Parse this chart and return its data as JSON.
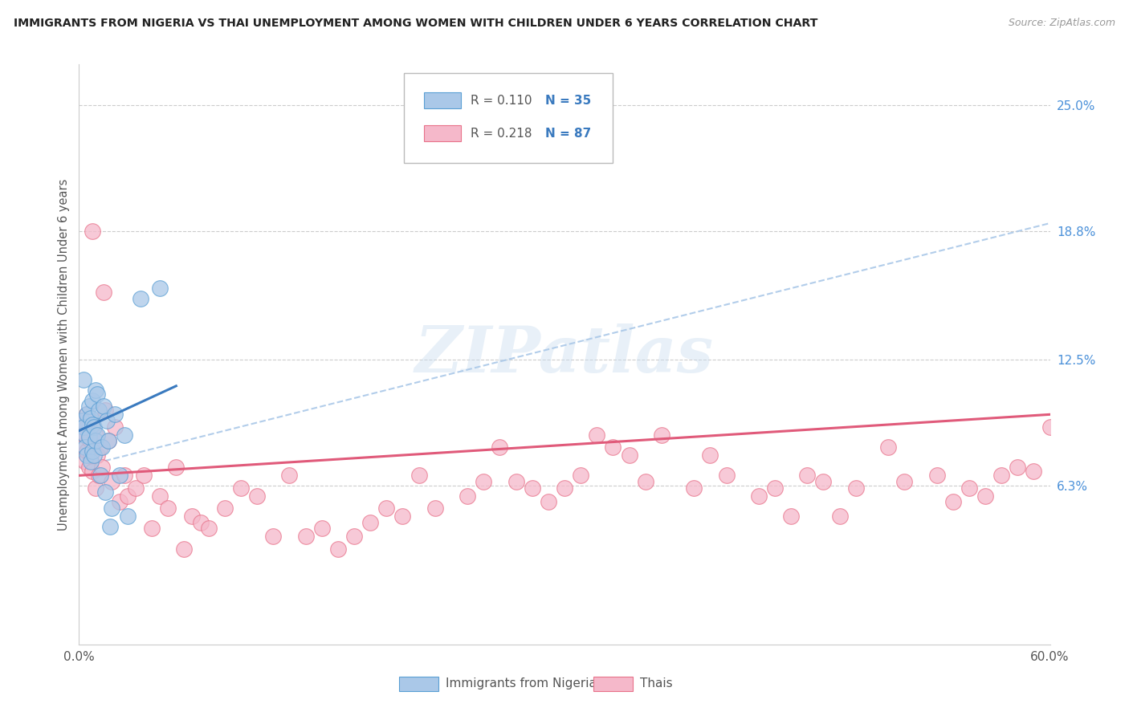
{
  "title": "IMMIGRANTS FROM NIGERIA VS THAI UNEMPLOYMENT AMONG WOMEN WITH CHILDREN UNDER 6 YEARS CORRELATION CHART",
  "source": "Source: ZipAtlas.com",
  "ylabel": "Unemployment Among Women with Children Under 6 years",
  "xlim": [
    0.0,
    0.6
  ],
  "ylim": [
    -0.015,
    0.27
  ],
  "xtick_positions": [
    0.0,
    0.1,
    0.2,
    0.3,
    0.4,
    0.5,
    0.6
  ],
  "xtick_labels": [
    "0.0%",
    "",
    "",
    "",
    "",
    "",
    "60.0%"
  ],
  "ytick_right_labels": [
    "6.3%",
    "12.5%",
    "18.8%",
    "25.0%"
  ],
  "ytick_right_positions": [
    0.063,
    0.125,
    0.188,
    0.25
  ],
  "nigeria_color": "#aac8e8",
  "nigeria_edge_color": "#5a9fd4",
  "thai_color": "#f5b8ca",
  "thai_edge_color": "#e8728a",
  "nigeria_line_color": "#3a7abf",
  "thai_line_color": "#e05a7a",
  "dashed_line_color": "#aac8e8",
  "legend_nigeria_r": "R = 0.110",
  "legend_nigeria_n": "N = 35",
  "legend_thai_r": "R = 0.218",
  "legend_thai_n": "N = 87",
  "watermark": "ZIPatlas",
  "nigeria_x": [
    0.002,
    0.003,
    0.003,
    0.004,
    0.004,
    0.005,
    0.005,
    0.006,
    0.006,
    0.007,
    0.007,
    0.008,
    0.008,
    0.008,
    0.009,
    0.009,
    0.01,
    0.01,
    0.011,
    0.011,
    0.012,
    0.013,
    0.014,
    0.015,
    0.016,
    0.017,
    0.018,
    0.019,
    0.02,
    0.022,
    0.025,
    0.028,
    0.03,
    0.038,
    0.05
  ],
  "nigeria_y": [
    0.095,
    0.115,
    0.092,
    0.088,
    0.082,
    0.098,
    0.078,
    0.102,
    0.087,
    0.096,
    0.075,
    0.105,
    0.093,
    0.08,
    0.092,
    0.078,
    0.11,
    0.085,
    0.108,
    0.088,
    0.1,
    0.068,
    0.082,
    0.102,
    0.06,
    0.095,
    0.085,
    0.043,
    0.052,
    0.098,
    0.068,
    0.088,
    0.048,
    0.155,
    0.16
  ],
  "thai_x": [
    0.002,
    0.003,
    0.003,
    0.004,
    0.004,
    0.005,
    0.005,
    0.006,
    0.006,
    0.007,
    0.007,
    0.008,
    0.008,
    0.009,
    0.01,
    0.01,
    0.011,
    0.012,
    0.013,
    0.014,
    0.015,
    0.016,
    0.018,
    0.02,
    0.022,
    0.025,
    0.028,
    0.03,
    0.035,
    0.04,
    0.045,
    0.05,
    0.055,
    0.06,
    0.065,
    0.07,
    0.075,
    0.08,
    0.09,
    0.1,
    0.11,
    0.12,
    0.13,
    0.14,
    0.15,
    0.16,
    0.17,
    0.18,
    0.19,
    0.2,
    0.21,
    0.22,
    0.24,
    0.25,
    0.26,
    0.27,
    0.28,
    0.29,
    0.3,
    0.31,
    0.32,
    0.33,
    0.34,
    0.35,
    0.36,
    0.38,
    0.39,
    0.4,
    0.42,
    0.43,
    0.44,
    0.45,
    0.46,
    0.47,
    0.48,
    0.5,
    0.51,
    0.53,
    0.54,
    0.55,
    0.56,
    0.57,
    0.58,
    0.59,
    0.6,
    0.005,
    0.008
  ],
  "thai_y": [
    0.09,
    0.082,
    0.095,
    0.075,
    0.088,
    0.08,
    0.098,
    0.072,
    0.086,
    0.078,
    0.095,
    0.07,
    0.092,
    0.085,
    0.062,
    0.088,
    0.078,
    0.068,
    0.082,
    0.072,
    0.158,
    0.1,
    0.085,
    0.065,
    0.092,
    0.055,
    0.068,
    0.058,
    0.062,
    0.068,
    0.042,
    0.058,
    0.052,
    0.072,
    0.032,
    0.048,
    0.045,
    0.042,
    0.052,
    0.062,
    0.058,
    0.038,
    0.068,
    0.038,
    0.042,
    0.032,
    0.038,
    0.045,
    0.052,
    0.048,
    0.068,
    0.052,
    0.058,
    0.065,
    0.082,
    0.065,
    0.062,
    0.055,
    0.062,
    0.068,
    0.088,
    0.082,
    0.078,
    0.065,
    0.088,
    0.062,
    0.078,
    0.068,
    0.058,
    0.062,
    0.048,
    0.068,
    0.065,
    0.048,
    0.062,
    0.082,
    0.065,
    0.068,
    0.055,
    0.062,
    0.058,
    0.068,
    0.072,
    0.07,
    0.092,
    0.092,
    0.188
  ],
  "nigeria_trend": [
    0.0,
    0.06,
    0.09,
    0.112
  ],
  "thai_trend": [
    0.0,
    0.6,
    0.068,
    0.098
  ],
  "dashed_trend": [
    0.0,
    0.6,
    0.072,
    0.192
  ]
}
